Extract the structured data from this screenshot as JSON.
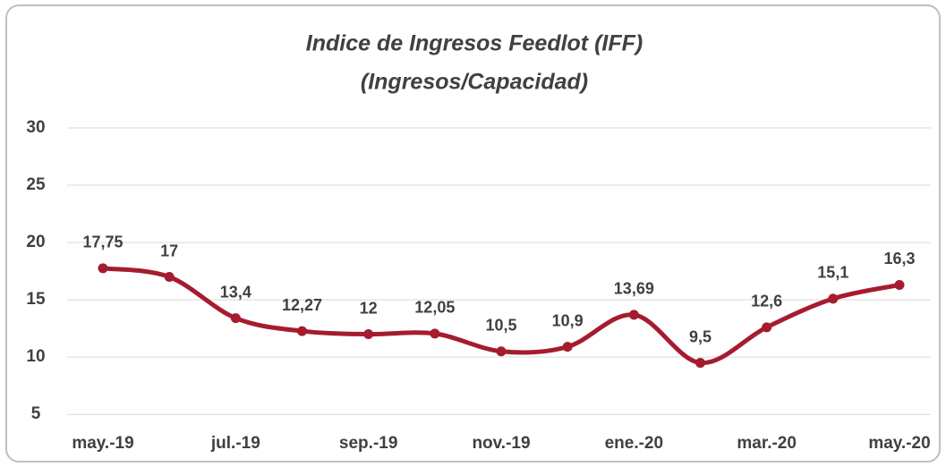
{
  "chart_data": {
    "type": "line",
    "title": "Indice de Ingresos Feedlot (IFF)",
    "subtitle": "(Ingresos/Capacidad)",
    "categories": [
      "may.-19",
      null,
      "jul.-19",
      null,
      "sep.-19",
      null,
      "nov.-19",
      null,
      "ene.-20",
      null,
      "mar.-20",
      null,
      "may.-20"
    ],
    "series": [
      {
        "name": "IFF",
        "color": "#a51c2f",
        "values": [
          17.75,
          17,
          13.4,
          12.27,
          12,
          12.05,
          10.5,
          10.9,
          13.69,
          9.5,
          12.6,
          15.1,
          16.3
        ],
        "value_labels": [
          "17,75",
          "17",
          "13,4",
          "12,27",
          "12",
          "12,05",
          "10,5",
          "10,9",
          "13,69",
          "9,5",
          "12,6",
          "15,1",
          "16,3"
        ]
      }
    ],
    "ylim": [
      4,
      30
    ],
    "yticks": [
      5,
      10,
      15,
      20,
      25,
      30
    ],
    "grid": true,
    "smooth": true
  }
}
